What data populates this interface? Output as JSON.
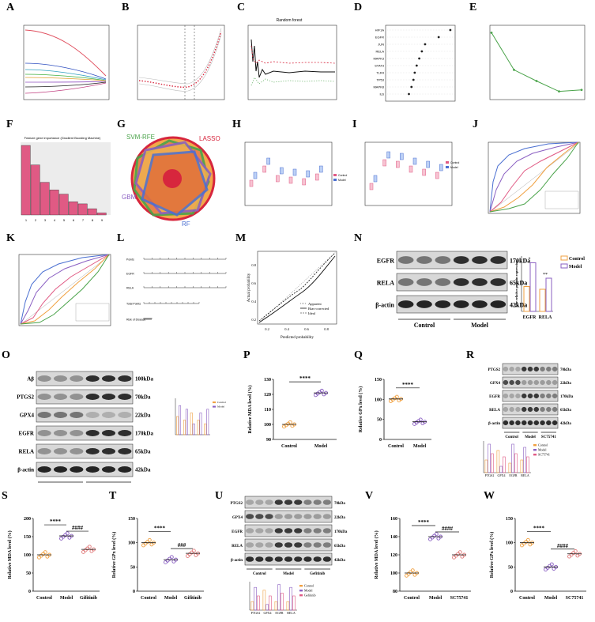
{
  "labels": [
    "A",
    "B",
    "C",
    "D",
    "E",
    "F",
    "G",
    "H",
    "I",
    "J",
    "K",
    "L",
    "M",
    "N",
    "O",
    "P",
    "Q",
    "R",
    "S",
    "T",
    "U",
    "V",
    "W"
  ],
  "rf_title": "Random forest",
  "fig_f_title": "Feature gene importance (Gradient Boosting Machine)",
  "venn": {
    "svm": "SVM-RFE",
    "lasso": "LASSO",
    "gbm": "GBM",
    "rf": "RF"
  },
  "genes_d": [
    "HIF1A",
    "EGFR",
    "JUN",
    "RELA",
    "MAPK3",
    "STAT3",
    "TLR4",
    "TP53",
    "MAPK8",
    "IL6"
  ],
  "legend_cm": [
    "Control",
    "Model"
  ],
  "legend_cmg": [
    "Control",
    "Model",
    "Gefitinib"
  ],
  "legend_cms": [
    "Control",
    "Model",
    "SC75741"
  ],
  "calib_legend": [
    "Apparent",
    "Bias-corrected",
    "Ideal"
  ],
  "calib_xlabel": "Predicted probability",
  "calib_ylabel": "Actual probability",
  "calib_ticks": [
    "0.2",
    "0.4",
    "0.6",
    "0.8"
  ],
  "wb_n": {
    "bands": [
      "EGFR",
      "RELA",
      "β-actin"
    ],
    "kda": [
      "170kDa",
      "65kDa",
      "42kDa"
    ],
    "groups": [
      "Control",
      "Model"
    ],
    "ylabel": "The relative protein expression",
    "xcats": [
      "EGFR",
      "RELA"
    ],
    "sig": [
      "*",
      "**"
    ]
  },
  "wb_o": {
    "bands": [
      "Aβ",
      "PTGS2",
      "GPX4",
      "EGFR",
      "RELA",
      "β-actin"
    ],
    "kda": [
      "100kDa",
      "70kDa",
      "22kDa",
      "170kDa",
      "65kDa",
      "42kDa"
    ],
    "groups": [
      "Control",
      "Model"
    ]
  },
  "wb_r": {
    "bands": [
      "PTGS2",
      "GPX4",
      "EGFR",
      "RELA",
      "β-actin"
    ],
    "kda": [
      "70kDa",
      "22kDa",
      "170kDa",
      "65kDa",
      "42kDa"
    ],
    "groups": [
      "Control",
      "Model",
      "SC75741"
    ],
    "xcats": [
      "PTGS2",
      "GPX4",
      "EGFR",
      "RELA"
    ]
  },
  "wb_u": {
    "bands": [
      "PTGS2",
      "GPX4",
      "EGFR",
      "RELA",
      "β-actin"
    ],
    "kda": [
      "70kDa",
      "22kDa",
      "170kDa",
      "65kDa",
      "42kDa"
    ],
    "groups": [
      "Control",
      "Model",
      "Gefitinib"
    ],
    "xcats": [
      "PTGS2",
      "GPX4",
      "EGFR",
      "RELA"
    ]
  },
  "dot_p": {
    "ylabel": "Relative MDA level (%)",
    "ticks": [
      "90",
      "100",
      "110",
      "120",
      "130"
    ],
    "groups": [
      "Control",
      "Model"
    ],
    "sig": [
      "****"
    ]
  },
  "dot_q": {
    "ylabel": "Relative GPx level (%)",
    "ticks": [
      "0",
      "50",
      "100",
      "150"
    ],
    "groups": [
      "Control",
      "Model"
    ],
    "sig": [
      "****"
    ]
  },
  "dot_s": {
    "ylabel": "Relative MDA level (%)",
    "ticks": [
      "0",
      "50",
      "100",
      "150",
      "200"
    ],
    "groups": [
      "Control",
      "Model",
      "Gifitinib"
    ],
    "sig": [
      "****",
      "####"
    ]
  },
  "dot_t": {
    "ylabel": "Relative GPx level (%)",
    "ticks": [
      "0",
      "50",
      "100",
      "150"
    ],
    "groups": [
      "Control",
      "Model",
      "Gifitinib"
    ],
    "sig": [
      "****",
      "###"
    ]
  },
  "dot_v": {
    "ylabel": "Relative MDA level (%)",
    "ticks": [
      "80",
      "100",
      "120",
      "140",
      "160"
    ],
    "groups": [
      "Control",
      "Model",
      "SC75741"
    ],
    "sig": [
      "****",
      "####"
    ]
  },
  "dot_w": {
    "ylabel": "Relative GPx level (%)",
    "ticks": [
      "0",
      "50",
      "100",
      "150"
    ],
    "groups": [
      "Control",
      "Model",
      "SC75741"
    ],
    "sig": [
      "****",
      "####"
    ]
  },
  "nomogram_rows": [
    "Points",
    "EGFR",
    "RELA",
    "Total Points",
    "Risk of Disease"
  ],
  "colors": {
    "pink": "#e05a84",
    "red": "#d7263d",
    "blue": "#4a6fd1",
    "orange": "#f0a040",
    "purple": "#8a5fc2",
    "green": "#4aa34a"
  },
  "chart_data": [
    {
      "type": "bar",
      "title": "Feature gene importance (Gradient Boosting Machine)",
      "categories": [
        "1",
        "2",
        "3",
        "4",
        "5",
        "6",
        "7",
        "8",
        "9"
      ],
      "values": [
        100,
        72,
        47,
        36,
        30,
        19,
        16,
        9,
        3
      ]
    },
    {
      "type": "line",
      "x": [
        2,
        4,
        6,
        8,
        10
      ],
      "y": [
        0.36,
        0.31,
        0.295,
        0.281,
        0.283
      ]
    },
    {
      "type": "scatter",
      "title": "P",
      "categories": [
        "Control",
        "Model"
      ],
      "means": [
        100,
        121
      ]
    },
    {
      "type": "scatter",
      "title": "Q",
      "categories": [
        "Control",
        "Model"
      ],
      "means": [
        101,
        44
      ]
    },
    {
      "type": "scatter",
      "title": "S",
      "categories": [
        "Control",
        "Model",
        "Gifitinib"
      ],
      "means": [
        100,
        152,
        115
      ]
    },
    {
      "type": "scatter",
      "title": "T",
      "categories": [
        "Control",
        "Model",
        "Gifitinib"
      ],
      "means": [
        100,
        65,
        78
      ]
    },
    {
      "type": "scatter",
      "title": "V",
      "categories": [
        "Control",
        "Model",
        "SC75741"
      ],
      "means": [
        100,
        140,
        120
      ]
    },
    {
      "type": "scatter",
      "title": "W",
      "categories": [
        "Control",
        "Model",
        "SC75741"
      ],
      "means": [
        100,
        50,
        77
      ]
    }
  ]
}
